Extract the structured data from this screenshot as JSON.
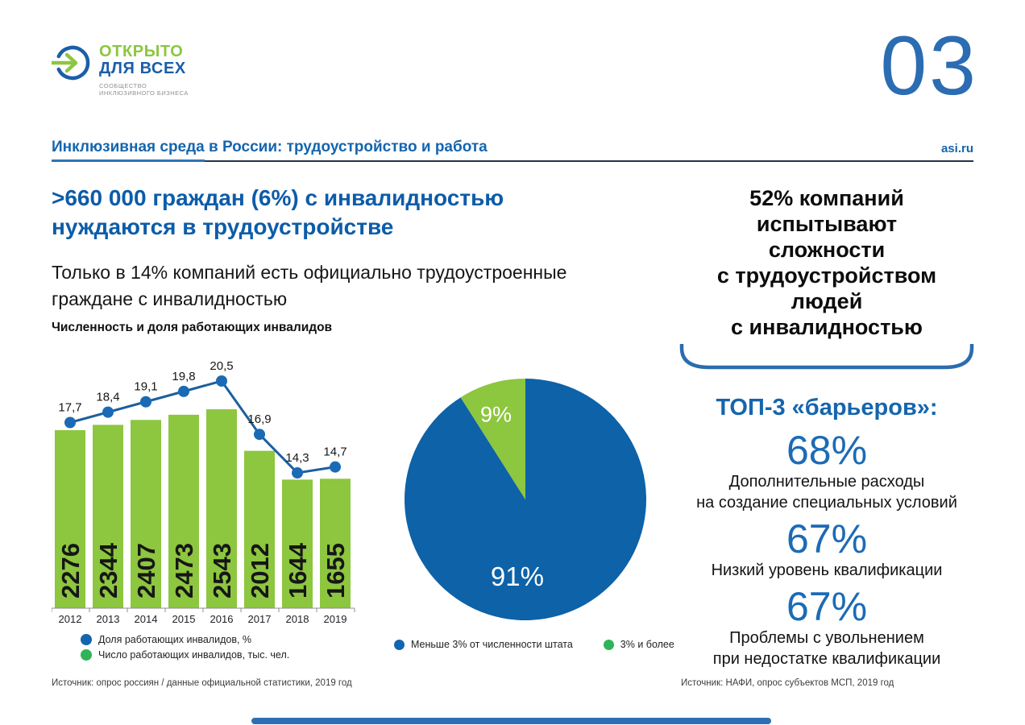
{
  "page": {
    "number": "03",
    "header_title": "Инклюзивная среда в России: трудоустройство и работа",
    "site": "asi.ru"
  },
  "logo": {
    "title_line1": "ОТКРЫТО",
    "title_line2": "ДЛЯ ВСЕХ",
    "subtitle": "СООБЩЕСТВО\nИНКЛЮЗИВНОГО БИЗНЕСА"
  },
  "left_column": {
    "headline": ">660 000 граждан (6%) с инвалидностью\nнуждаются в трудоустройстве",
    "subheadline": "Только в 14% компаний есть официально трудоустроенные\nграждане с инвалидностью",
    "source": "Источник: опрос россиян / данные официальной статистики, 2019 год"
  },
  "right_column": {
    "stat_headline": "52% компаний\nиспытывают\nсложности\nс трудоустройством\nлюдей\nс инвалидностью",
    "top3_title": "ТОП-3 «барьеров»:",
    "barriers": [
      {
        "value": "68%",
        "label": "Дополнительные расходы\nна создание специальных условий"
      },
      {
        "value": "67%",
        "label": "Низкий уровень квалификации"
      },
      {
        "value": "67%",
        "label": "Проблемы с увольнением\nпри недостатке квалификации"
      }
    ],
    "source": "Источник: НАФИ, опрос субъектов МСП, 2019 год"
  },
  "colors": {
    "brand_green": "#8DC63F",
    "brand_blue": "#1B5EA8",
    "heading_blue": "#0D5CA8",
    "line_blue": "#1B5F9E",
    "pie_blue": "#0D62A8",
    "legend_blue": "#1465B0",
    "legend_green": "#2FB457"
  },
  "chart_data": [
    {
      "type": "bar",
      "title": "Численность и доля работающих инвалидов",
      "categories": [
        "2012",
        "2013",
        "2014",
        "2015",
        "2016",
        "2017",
        "2018",
        "2019"
      ],
      "series": [
        {
          "name": "Число работающих инвалидов, тыс. чел.",
          "chart": "bar",
          "color": "#8DC63F",
          "values": [
            2276,
            2344,
            2407,
            2473,
            2543,
            2012,
            1644,
            1655
          ]
        },
        {
          "name": "Доля работающих инвалидов, %",
          "chart": "line",
          "color": "#1B5F9E",
          "marker_color": "#1B6AB5",
          "values": [
            17.7,
            18.4,
            19.1,
            19.8,
            20.5,
            16.9,
            14.3,
            14.7
          ],
          "point_labels": [
            "17,7",
            "18,4",
            "19,1",
            "19,8",
            "20,5",
            "16,9",
            "14,3",
            "14,7"
          ]
        }
      ],
      "legend_position": "bottom",
      "grid": false
    },
    {
      "type": "pie",
      "start_angle": "top",
      "direction": "clockwise",
      "slices": [
        {
          "label": "Меньше 3% от численности штата",
          "value": 91,
          "display": "91%",
          "color": "#0D62A8"
        },
        {
          "label": "3% и более",
          "value": 9,
          "display": "9%",
          "color": "#8DC63F"
        }
      ],
      "legend_position": "bottom"
    }
  ]
}
